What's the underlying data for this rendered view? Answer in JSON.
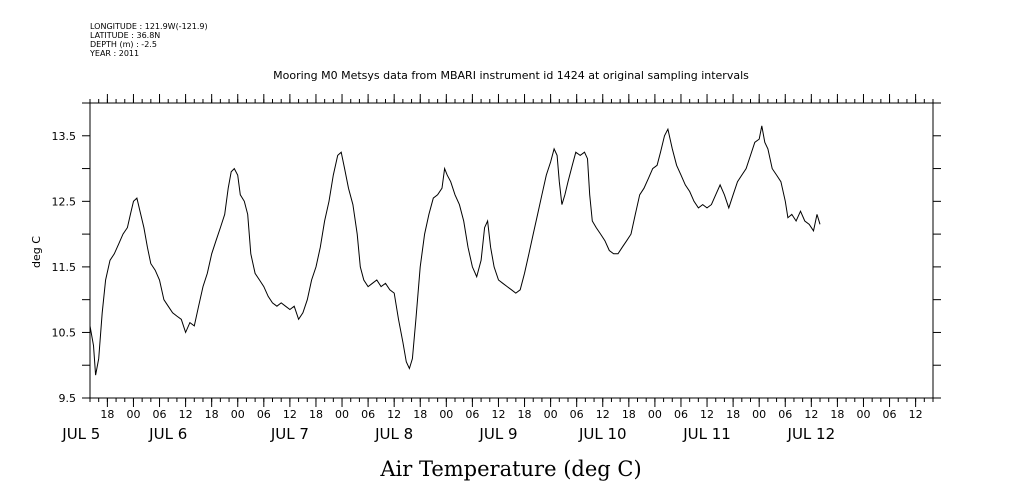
{
  "header_meta": {
    "longitude": "LONGITUDE : 121.9W(-121.9)",
    "latitude": "LATITUDE : 36.8N",
    "depth": "DEPTH (m) : -2.5",
    "year": "YEAR : 2011"
  },
  "chart_data": {
    "type": "line",
    "title": "Mooring M0 Metsys data from MBARI instrument id 1424 at original sampling intervals",
    "xlabel": "Air Temperature (deg C)",
    "ylabel": "deg C",
    "ylim": [
      9.5,
      14.0
    ],
    "xlim_hours": [
      14,
      208
    ],
    "y_ticks": [
      9.5,
      10.5,
      11.5,
      12.5,
      13.5
    ],
    "y_tick_labels": [
      "9.5",
      "10.5",
      "11.5",
      "12.5",
      "13.5"
    ],
    "x_hour_ticks": [
      {
        "label": "18",
        "hours": 18
      },
      {
        "label": "00",
        "hours": 24
      },
      {
        "label": "06",
        "hours": 30
      },
      {
        "label": "12",
        "hours": 36
      },
      {
        "label": "18",
        "hours": 42
      },
      {
        "label": "00",
        "hours": 48
      },
      {
        "label": "06",
        "hours": 54
      },
      {
        "label": "12",
        "hours": 60
      },
      {
        "label": "18",
        "hours": 66
      },
      {
        "label": "00",
        "hours": 72
      },
      {
        "label": "06",
        "hours": 78
      },
      {
        "label": "12",
        "hours": 84
      },
      {
        "label": "18",
        "hours": 90
      },
      {
        "label": "00",
        "hours": 96
      },
      {
        "label": "06",
        "hours": 102
      },
      {
        "label": "12",
        "hours": 108
      },
      {
        "label": "18",
        "hours": 114
      },
      {
        "label": "00",
        "hours": 120
      },
      {
        "label": "06",
        "hours": 126
      },
      {
        "label": "12",
        "hours": 132
      },
      {
        "label": "18",
        "hours": 138
      },
      {
        "label": "00",
        "hours": 144
      },
      {
        "label": "06",
        "hours": 150
      },
      {
        "label": "12",
        "hours": 156
      },
      {
        "label": "18",
        "hours": 162
      },
      {
        "label": "00",
        "hours": 168
      },
      {
        "label": "06",
        "hours": 174
      },
      {
        "label": "12",
        "hours": 180
      },
      {
        "label": "18",
        "hours": 186
      },
      {
        "label": "00",
        "hours": 192
      },
      {
        "label": "06",
        "hours": 198
      },
      {
        "label": "12",
        "hours": 204
      }
    ],
    "date_labels": [
      {
        "label": "JUL  5",
        "hours": 12
      },
      {
        "label": "JUL  6",
        "hours": 32
      },
      {
        "label": "JUL  7",
        "hours": 60
      },
      {
        "label": "JUL  8",
        "hours": 84
      },
      {
        "label": "JUL  9",
        "hours": 108
      },
      {
        "label": "JUL 10",
        "hours": 132
      },
      {
        "label": "JUL 11",
        "hours": 156
      },
      {
        "label": "JUL 12",
        "hours": 180
      }
    ],
    "series": [
      {
        "color": "#000000",
        "points": [
          [
            14.0,
            10.6
          ],
          [
            14.8,
            10.3
          ],
          [
            15.3,
            9.85
          ],
          [
            16.0,
            10.1
          ],
          [
            16.8,
            10.8
          ],
          [
            17.6,
            11.3
          ],
          [
            18.6,
            11.6
          ],
          [
            19.6,
            11.7
          ],
          [
            20.6,
            11.85
          ],
          [
            21.6,
            12.0
          ],
          [
            22.6,
            12.1
          ],
          [
            23.3,
            12.3
          ],
          [
            24.0,
            12.5
          ],
          [
            24.8,
            12.55
          ],
          [
            25.5,
            12.35
          ],
          [
            26.4,
            12.1
          ],
          [
            27.2,
            11.8
          ],
          [
            28.0,
            11.55
          ],
          [
            29.0,
            11.45
          ],
          [
            30.0,
            11.3
          ],
          [
            31.0,
            11.0
          ],
          [
            32.0,
            10.9
          ],
          [
            33.0,
            10.8
          ],
          [
            34.0,
            10.75
          ],
          [
            35.0,
            10.7
          ],
          [
            36.0,
            10.5
          ],
          [
            37.0,
            10.65
          ],
          [
            38.0,
            10.6
          ],
          [
            39.0,
            10.9
          ],
          [
            40.0,
            11.2
          ],
          [
            41.0,
            11.4
          ],
          [
            42.0,
            11.7
          ],
          [
            43.0,
            11.9
          ],
          [
            44.0,
            12.1
          ],
          [
            45.0,
            12.3
          ],
          [
            45.8,
            12.7
          ],
          [
            46.5,
            12.95
          ],
          [
            47.2,
            13.0
          ],
          [
            48.0,
            12.9
          ],
          [
            48.6,
            12.6
          ],
          [
            49.5,
            12.5
          ],
          [
            50.3,
            12.3
          ],
          [
            51.0,
            11.7
          ],
          [
            52.0,
            11.4
          ],
          [
            53.0,
            11.3
          ],
          [
            54.0,
            11.2
          ],
          [
            55.0,
            11.05
          ],
          [
            56.0,
            10.95
          ],
          [
            57.0,
            10.9
          ],
          [
            58.0,
            10.95
          ],
          [
            59.0,
            10.9
          ],
          [
            60.0,
            10.85
          ],
          [
            61.0,
            10.9
          ],
          [
            62.0,
            10.7
          ],
          [
            63.0,
            10.8
          ],
          [
            64.0,
            11.0
          ],
          [
            65.0,
            11.3
          ],
          [
            66.0,
            11.5
          ],
          [
            67.0,
            11.8
          ],
          [
            68.0,
            12.2
          ],
          [
            69.0,
            12.5
          ],
          [
            70.0,
            12.9
          ],
          [
            71.0,
            13.2
          ],
          [
            71.8,
            13.25
          ],
          [
            72.6,
            13.0
          ],
          [
            73.5,
            12.7
          ],
          [
            74.5,
            12.45
          ],
          [
            75.5,
            12.0
          ],
          [
            76.2,
            11.5
          ],
          [
            77.0,
            11.3
          ],
          [
            78.0,
            11.2
          ],
          [
            79.0,
            11.25
          ],
          [
            80.0,
            11.3
          ],
          [
            81.0,
            11.2
          ],
          [
            82.0,
            11.25
          ],
          [
            83.0,
            11.15
          ],
          [
            84.0,
            11.1
          ],
          [
            85.0,
            10.7
          ],
          [
            86.0,
            10.35
          ],
          [
            86.8,
            10.05
          ],
          [
            87.5,
            9.95
          ],
          [
            88.2,
            10.1
          ],
          [
            89.0,
            10.7
          ],
          [
            90.0,
            11.5
          ],
          [
            91.0,
            12.0
          ],
          [
            92.0,
            12.3
          ],
          [
            93.0,
            12.55
          ],
          [
            94.0,
            12.6
          ],
          [
            95.0,
            12.7
          ],
          [
            95.6,
            13.0
          ],
          [
            96.2,
            12.9
          ],
          [
            97.0,
            12.8
          ],
          [
            98.0,
            12.6
          ],
          [
            99.0,
            12.45
          ],
          [
            100.0,
            12.2
          ],
          [
            101.0,
            11.8
          ],
          [
            102.0,
            11.5
          ],
          [
            103.0,
            11.35
          ],
          [
            104.0,
            11.6
          ],
          [
            104.8,
            12.1
          ],
          [
            105.5,
            12.2
          ],
          [
            106.2,
            11.8
          ],
          [
            107.0,
            11.5
          ],
          [
            108.0,
            11.3
          ],
          [
            109.0,
            11.25
          ],
          [
            110.0,
            11.2
          ],
          [
            111.0,
            11.15
          ],
          [
            112.0,
            11.1
          ],
          [
            113.0,
            11.15
          ],
          [
            114.0,
            11.4
          ],
          [
            115.0,
            11.7
          ],
          [
            116.0,
            12.0
          ],
          [
            117.0,
            12.3
          ],
          [
            118.0,
            12.6
          ],
          [
            119.0,
            12.9
          ],
          [
            120.0,
            13.1
          ],
          [
            120.8,
            13.3
          ],
          [
            121.5,
            13.2
          ],
          [
            122.0,
            12.8
          ],
          [
            122.6,
            12.45
          ],
          [
            123.3,
            12.6
          ],
          [
            124.0,
            12.8
          ],
          [
            125.0,
            13.05
          ],
          [
            125.8,
            13.25
          ],
          [
            126.8,
            13.2
          ],
          [
            127.8,
            13.25
          ],
          [
            128.5,
            13.15
          ],
          [
            129.0,
            12.6
          ],
          [
            129.6,
            12.2
          ],
          [
            130.5,
            12.1
          ],
          [
            131.5,
            12.0
          ],
          [
            132.5,
            11.9
          ],
          [
            133.5,
            11.75
          ],
          [
            134.5,
            11.7
          ],
          [
            135.5,
            11.7
          ],
          [
            136.5,
            11.8
          ],
          [
            137.5,
            11.9
          ],
          [
            138.5,
            12.0
          ],
          [
            139.5,
            12.3
          ],
          [
            140.5,
            12.6
          ],
          [
            141.5,
            12.7
          ],
          [
            142.5,
            12.85
          ],
          [
            143.5,
            13.0
          ],
          [
            144.5,
            13.05
          ],
          [
            145.3,
            13.25
          ],
          [
            146.2,
            13.5
          ],
          [
            147.0,
            13.6
          ],
          [
            148.0,
            13.3
          ],
          [
            149.0,
            13.05
          ],
          [
            150.0,
            12.9
          ],
          [
            151.0,
            12.75
          ],
          [
            152.0,
            12.65
          ],
          [
            153.0,
            12.5
          ],
          [
            154.0,
            12.4
          ],
          [
            155.0,
            12.45
          ],
          [
            156.0,
            12.4
          ],
          [
            157.0,
            12.45
          ],
          [
            158.0,
            12.6
          ],
          [
            159.0,
            12.75
          ],
          [
            160.0,
            12.6
          ],
          [
            161.0,
            12.4
          ],
          [
            162.0,
            12.6
          ],
          [
            163.0,
            12.8
          ],
          [
            164.0,
            12.9
          ],
          [
            165.0,
            13.0
          ],
          [
            166.0,
            13.2
          ],
          [
            167.0,
            13.4
          ],
          [
            168.0,
            13.45
          ],
          [
            168.6,
            13.65
          ],
          [
            169.3,
            13.4
          ],
          [
            170.0,
            13.3
          ],
          [
            171.0,
            13.0
          ],
          [
            172.0,
            12.9
          ],
          [
            173.0,
            12.8
          ],
          [
            174.0,
            12.5
          ],
          [
            174.6,
            12.25
          ],
          [
            175.5,
            12.3
          ],
          [
            176.5,
            12.2
          ],
          [
            177.5,
            12.35
          ],
          [
            178.5,
            12.2
          ],
          [
            179.5,
            12.15
          ],
          [
            180.5,
            12.05
          ],
          [
            181.3,
            12.3
          ],
          [
            182.0,
            12.15
          ]
        ]
      }
    ]
  }
}
